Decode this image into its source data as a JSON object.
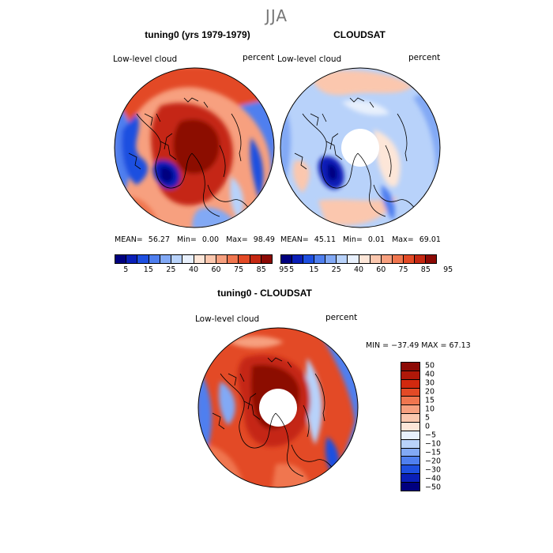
{
  "season": "JJA",
  "panels": {
    "model": {
      "title": "tuning0 (yrs 1979-1979)",
      "variable": "Low-level cloud",
      "units": "percent",
      "mean_label": "MEAN=",
      "mean": "56.27",
      "min_label": "Min=",
      "min": "0.00",
      "max_label": "Max=",
      "max": "98.49"
    },
    "obs": {
      "title": "CLOUDSAT",
      "variable": "Low-level cloud",
      "units": "percent",
      "mean_label": "MEAN=",
      "mean": "45.11",
      "min_label": "Min=",
      "min": "0.01",
      "max_label": "Max=",
      "max": "69.01"
    },
    "diff": {
      "title": "tuning0 - CLOUDSAT",
      "variable": "Low-level cloud",
      "units": "percent",
      "minmax": "MIN = −37.49  MAX =   67.13"
    }
  },
  "colorbar_small": {
    "colors": [
      "#00007f",
      "#0a1fb8",
      "#1e4fe0",
      "#4f7fef",
      "#82a9f5",
      "#b8d2fa",
      "#e8f0fc",
      "#fde6d8",
      "#fbc7ae",
      "#f7a07f",
      "#f0764f",
      "#e34a26",
      "#c52812",
      "#8c0a05"
    ],
    "tick_labels": [
      "5",
      "15",
      "25",
      "40",
      "60",
      "75",
      "85",
      "95"
    ]
  },
  "colorbar_diff": {
    "colors": [
      "#8c0a05",
      "#b01809",
      "#d2290f",
      "#e34a26",
      "#f0764f",
      "#f7a07f",
      "#fbc7ae",
      "#fde6d8",
      "#e8f0fc",
      "#b8d2fa",
      "#82a9f5",
      "#4f7fef",
      "#1e4fe0",
      "#0a1fb8",
      "#00007f"
    ],
    "tick_labels": [
      "50",
      "40",
      "30",
      "20",
      "15",
      "10",
      "5",
      "0",
      "−5",
      "−10",
      "−15",
      "−20",
      "−30",
      "−40",
      "−50"
    ]
  }
}
